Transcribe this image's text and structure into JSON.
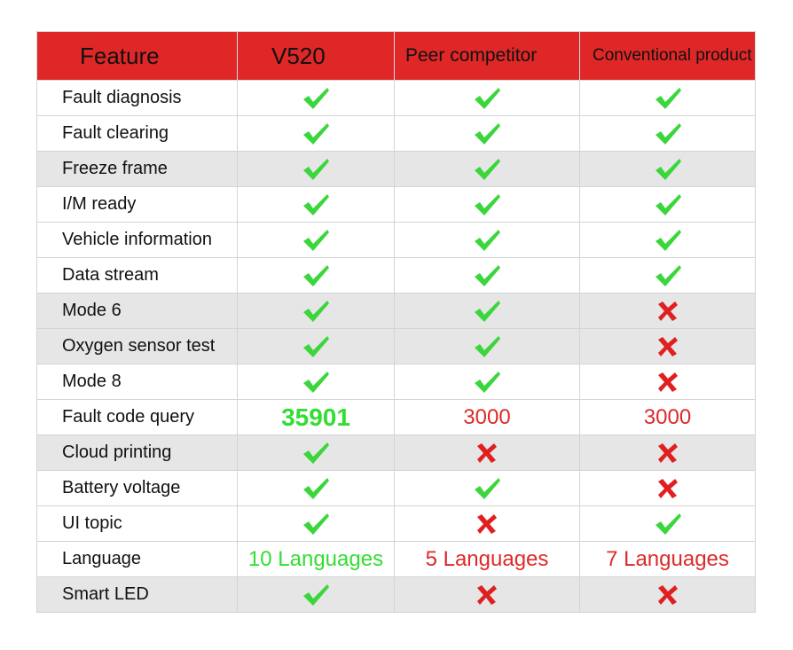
{
  "table": {
    "header": [
      "Feature",
      "V520",
      "Peer competitor",
      "Conventional product"
    ],
    "rows": [
      [
        "Fault diagnosis",
        true,
        true,
        true
      ],
      [
        "Fault clearing",
        true,
        true,
        true
      ],
      [
        "Freeze frame",
        true,
        true,
        true
      ],
      [
        "I/M ready",
        true,
        true,
        true
      ],
      [
        "Vehicle information",
        true,
        true,
        true
      ],
      [
        "Data stream",
        true,
        true,
        true
      ],
      [
        "Mode 6",
        true,
        true,
        false
      ],
      [
        "Oxygen sensor test",
        true,
        true,
        false
      ],
      [
        "Mode 8",
        true,
        true,
        false
      ],
      [
        "Fault code query",
        "35901",
        "3000",
        "3000"
      ],
      [
        "Cloud printing",
        true,
        false,
        false
      ],
      [
        "Battery voltage",
        true,
        true,
        false
      ],
      [
        "UI topic",
        true,
        false,
        true
      ],
      [
        "Language",
        "10 Languages",
        "5 Languages",
        "7 Languages"
      ],
      [
        "Smart LED",
        true,
        false,
        false
      ]
    ]
  }
}
